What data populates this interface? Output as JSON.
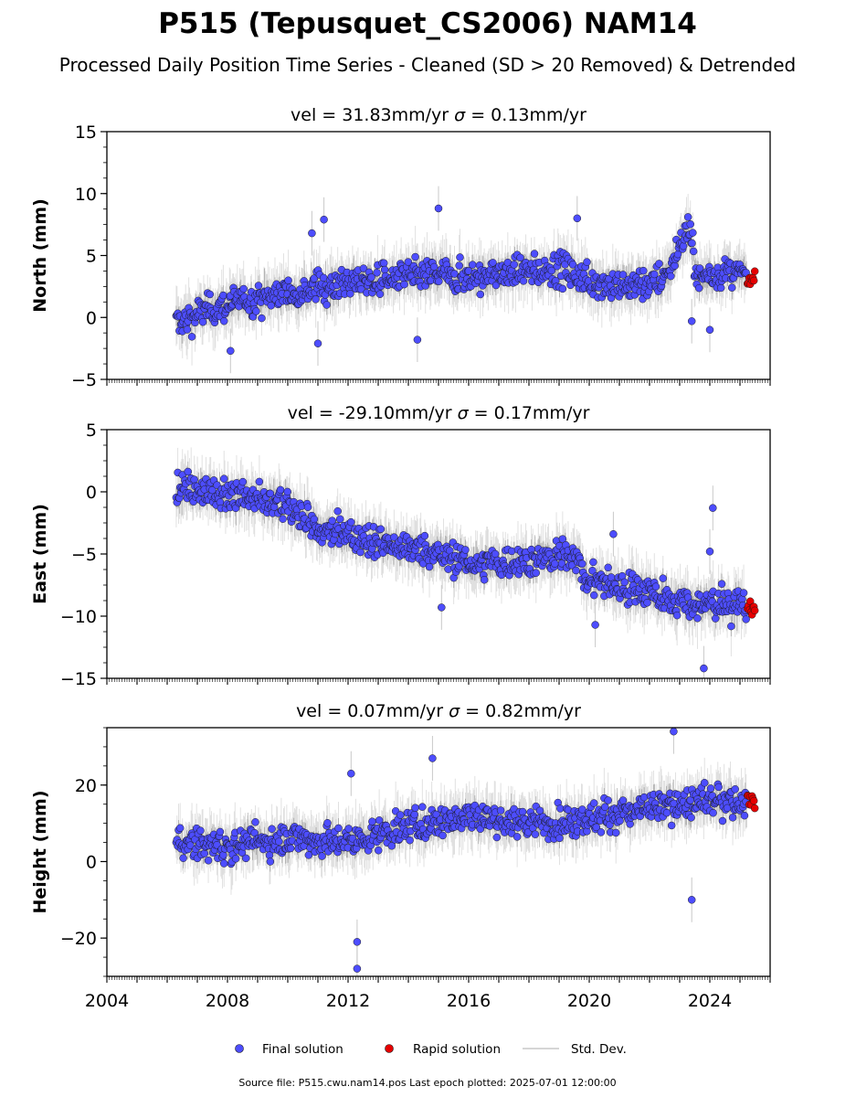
{
  "figure": {
    "title": "P515 (Tepusquet_CS2006) NAM14",
    "subtitle": "Processed Daily Position Time Series - Cleaned (SD > 20 Removed) & Detrended",
    "footer": "Source file: P515.cwu.nam14.pos  Last epoch plotted: 2025-07-01 12:00:00"
  },
  "legend": {
    "final_label": "Final solution",
    "rapid_label": "Rapid solution",
    "sd_label": "Std. Dev."
  },
  "colors": {
    "final": "#4d4dff",
    "rapid": "#e60000",
    "sd": "#c8c8c8",
    "marker_edge": "#1a1a1a"
  },
  "chart_data": [
    {
      "type": "scatter",
      "panel": "north",
      "title_vel": "vel = 31.83mm/yr",
      "title_sigma_symbol": "σ",
      "title_sigma_rest": " = 0.13mm/yr",
      "ylabel": "North (mm)",
      "ylim": [
        -5,
        15
      ],
      "yticks": [
        -5,
        0,
        5,
        10,
        15
      ],
      "ytick_labels": [
        "−5",
        "0",
        "5",
        "10",
        "15"
      ],
      "xlim": [
        2004,
        2026
      ],
      "final_start": 2006.3,
      "final_end": 2025.22,
      "rapid_start": 2025.25,
      "rapid_end": 2025.5,
      "series": [
        {
          "name": "Final solution",
          "x": [
            2006.3,
            2007.0,
            2008.0,
            2009.0,
            2010.0,
            2011.0,
            2012.0,
            2013.0,
            2014.0,
            2015.0,
            2016.0,
            2017.0,
            2018.0,
            2019.0,
            2020.0,
            2021.0,
            2022.0,
            2022.6,
            2023.0,
            2023.3,
            2023.6,
            2024.0,
            2025.0,
            2025.2
          ],
          "y": [
            -0.5,
            0.3,
            1.0,
            1.5,
            2.0,
            2.5,
            2.8,
            3.0,
            3.3,
            3.5,
            3.2,
            3.5,
            3.7,
            4.0,
            3.0,
            2.5,
            2.8,
            3.5,
            6.0,
            7.0,
            3.0,
            3.5,
            3.5,
            3.5
          ]
        },
        {
          "name": "Rapid solution",
          "x": [
            2025.3,
            2025.5
          ],
          "y": [
            3.5,
            3.3
          ]
        }
      ],
      "outliers": [
        {
          "x": 2010.8,
          "y": 6.8
        },
        {
          "x": 2011.2,
          "y": 7.9
        },
        {
          "x": 2011.0,
          "y": -2.1
        },
        {
          "x": 2014.3,
          "y": -1.8
        },
        {
          "x": 2015.0,
          "y": 8.8
        },
        {
          "x": 2008.1,
          "y": -2.7
        },
        {
          "x": 2019.6,
          "y": 8.0
        },
        {
          "x": 2023.4,
          "y": -0.3
        },
        {
          "x": 2024.0,
          "y": -1.0
        }
      ]
    },
    {
      "type": "scatter",
      "panel": "east",
      "title_vel": "vel = -29.10mm/yr",
      "title_sigma_symbol": "σ",
      "title_sigma_rest": " = 0.17mm/yr",
      "ylabel": "East (mm)",
      "ylim": [
        -15,
        5
      ],
      "yticks": [
        -15,
        -10,
        -5,
        0,
        5
      ],
      "ytick_labels": [
        "−15",
        "−10",
        "−5",
        "0",
        "5"
      ],
      "xlim": [
        2004,
        2026
      ],
      "final_start": 2006.3,
      "final_end": 2025.22,
      "rapid_start": 2025.25,
      "rapid_end": 2025.5,
      "series": [
        {
          "name": "Final solution",
          "x": [
            2006.3,
            2007.0,
            2008.0,
            2009.0,
            2010.0,
            2010.6,
            2011.0,
            2012.0,
            2013.0,
            2014.0,
            2015.0,
            2016.0,
            2017.0,
            2018.0,
            2019.0,
            2019.5,
            2019.9,
            2020.5,
            2021.0,
            2022.0,
            2023.0,
            2023.5,
            2024.0,
            2025.0,
            2025.2
          ],
          "y": [
            0.3,
            0.3,
            -0.2,
            -0.7,
            -1.2,
            -2.0,
            -3.2,
            -3.4,
            -4.0,
            -4.5,
            -5.0,
            -5.7,
            -5.8,
            -5.5,
            -5.2,
            -5.0,
            -7.0,
            -7.3,
            -7.6,
            -8.0,
            -8.8,
            -9.2,
            -9.0,
            -8.9,
            -9.0
          ]
        },
        {
          "name": "Rapid solution",
          "x": [
            2025.3,
            2025.5
          ],
          "y": [
            -9.3,
            -9.4
          ]
        }
      ],
      "outliers": [
        {
          "x": 2024.1,
          "y": -1.3
        },
        {
          "x": 2024.0,
          "y": -4.8
        },
        {
          "x": 2023.8,
          "y": -14.2
        },
        {
          "x": 2020.2,
          "y": -10.7
        },
        {
          "x": 2020.8,
          "y": -3.4
        },
        {
          "x": 2015.1,
          "y": -9.3
        }
      ]
    },
    {
      "type": "scatter",
      "panel": "height",
      "title_vel": "vel = 0.07mm/yr",
      "title_sigma_symbol": "σ",
      "title_sigma_rest": " = 0.82mm/yr",
      "ylabel": "Height (mm)",
      "ylim": [
        -30,
        35
      ],
      "yticks": [
        -20,
        0,
        20
      ],
      "ytick_labels": [
        "−20",
        "0",
        "20"
      ],
      "xlim": [
        2004,
        2026
      ],
      "final_start": 2006.3,
      "final_end": 2025.22,
      "rapid_start": 2025.25,
      "rapid_end": 2025.5,
      "xticks": [
        2004,
        2008,
        2012,
        2016,
        2020,
        2024
      ],
      "xtick_labels": [
        "2004",
        "2008",
        "2012",
        "2016",
        "2020",
        "2024"
      ],
      "series": [
        {
          "name": "Final solution",
          "x": [
            2006.3,
            2008.0,
            2010.0,
            2012.0,
            2014.0,
            2016.0,
            2018.0,
            2020.0,
            2022.0,
            2023.0,
            2024.0,
            2025.2
          ],
          "y": [
            5,
            4,
            6,
            5,
            9,
            12,
            10,
            11,
            14,
            15,
            16,
            15
          ]
        },
        {
          "name": "Rapid solution",
          "x": [
            2025.3,
            2025.5
          ],
          "y": [
            16,
            15
          ]
        }
      ],
      "outliers": [
        {
          "x": 2012.3,
          "y": -28
        },
        {
          "x": 2012.3,
          "y": -21
        },
        {
          "x": 2012.1,
          "y": 23
        },
        {
          "x": 2014.8,
          "y": 27
        },
        {
          "x": 2022.8,
          "y": 34
        },
        {
          "x": 2023.4,
          "y": -10
        }
      ]
    }
  ]
}
